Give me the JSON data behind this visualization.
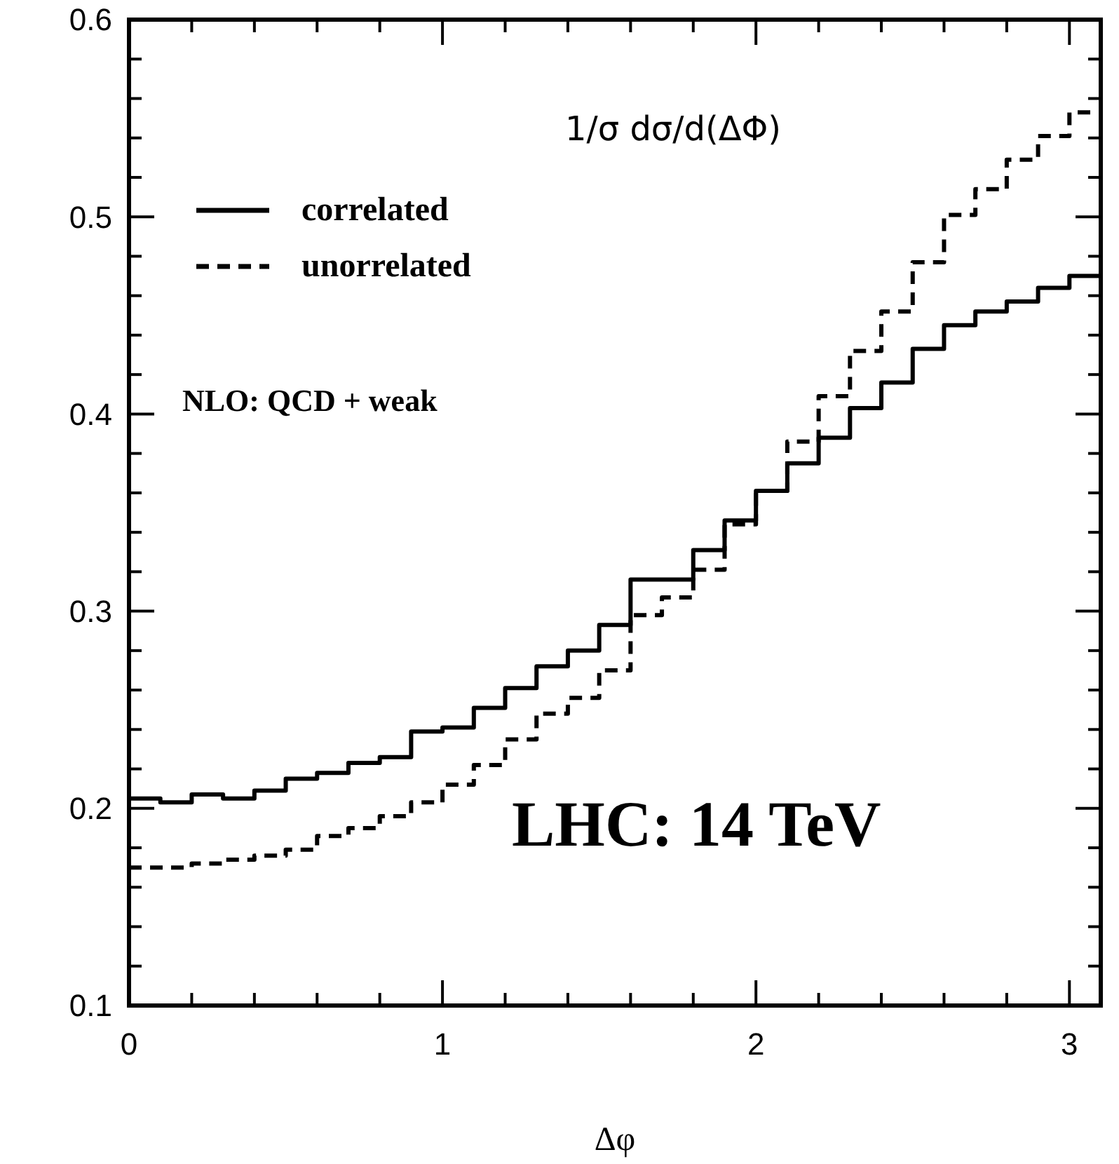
{
  "chart_data": {
    "type": "step",
    "title": "1/σ dσ/d(ΔΦ)",
    "xlabel": "Δφ",
    "x": [
      0,
      0.1,
      0.2,
      0.3,
      0.4,
      0.5,
      0.6,
      0.7,
      0.8,
      0.9,
      1.0,
      1.1,
      1.2,
      1.3,
      1.4,
      1.5,
      1.6,
      1.7,
      1.8,
      1.9,
      2.0,
      2.1,
      2.2,
      2.3,
      2.4,
      2.5,
      2.6,
      2.7,
      2.8,
      2.9,
      3.0,
      3.1
    ],
    "series": [
      {
        "name": "correlated",
        "color": "#000000",
        "line_style": "solid",
        "values": [
          0.205,
          0.203,
          0.207,
          0.205,
          0.209,
          0.215,
          0.218,
          0.223,
          0.226,
          0.239,
          0.241,
          0.251,
          0.261,
          0.272,
          0.28,
          0.293,
          0.316,
          0.316,
          0.331,
          0.346,
          0.361,
          0.375,
          0.388,
          0.403,
          0.416,
          0.433,
          0.445,
          0.452,
          0.457,
          0.464,
          0.47,
          0.47
        ]
      },
      {
        "name": "unorrelated",
        "color": "#000000",
        "line_style": "dashed",
        "values": [
          0.17,
          0.17,
          0.172,
          0.174,
          0.176,
          0.179,
          0.186,
          0.19,
          0.196,
          0.203,
          0.212,
          0.222,
          0.235,
          0.248,
          0.256,
          0.27,
          0.298,
          0.307,
          0.321,
          0.344,
          0.361,
          0.386,
          0.409,
          0.432,
          0.452,
          0.477,
          0.501,
          0.514,
          0.529,
          0.541,
          0.553,
          0.553
        ]
      }
    ],
    "xlim": [
      0,
      3.1
    ],
    "xticks": [
      0,
      {
        "value": 0.2,
        "label": null
      },
      {
        "value": 0.4,
        "label": null
      },
      {
        "value": 0.6,
        "label": null
      },
      {
        "value": 0.8,
        "label": null
      },
      1,
      {
        "value": 1.2,
        "label": null
      },
      {
        "value": 1.4,
        "label": null
      },
      {
        "value": 1.6,
        "label": null
      },
      {
        "value": 1.8,
        "label": null
      },
      2,
      {
        "value": 2.2,
        "label": null
      },
      {
        "value": 2.4,
        "label": null
      },
      {
        "value": 2.6,
        "label": null
      },
      {
        "value": 2.8,
        "label": null
      },
      3
    ],
    "ylim": [
      0.1,
      0.6
    ],
    "yticks": [
      0.1,
      {
        "value": 0.12,
        "label": null
      },
      {
        "value": 0.14,
        "label": null
      },
      {
        "value": 0.16,
        "label": null
      },
      {
        "value": 0.18,
        "label": null
      },
      0.2,
      {
        "value": 0.22,
        "label": null
      },
      {
        "value": 0.24,
        "label": null
      },
      {
        "value": 0.26,
        "label": null
      },
      {
        "value": 0.28,
        "label": null
      },
      0.3,
      {
        "value": 0.32,
        "label": null
      },
      {
        "value": 0.34,
        "label": null
      },
      {
        "value": 0.36,
        "label": null
      },
      {
        "value": 0.38,
        "label": null
      },
      0.4,
      {
        "value": 0.42,
        "label": null
      },
      {
        "value": 0.44,
        "label": null
      },
      {
        "value": 0.46,
        "label": null
      },
      {
        "value": 0.48,
        "label": null
      },
      0.5,
      {
        "value": 0.52,
        "label": null
      },
      {
        "value": 0.54,
        "label": null
      },
      {
        "value": 0.56,
        "label": null
      },
      {
        "value": 0.58,
        "label": null
      },
      0.6
    ],
    "legend": "top left",
    "annotations": [
      "NLO: QCD + weak",
      "LHC: 14 TeV"
    ]
  }
}
